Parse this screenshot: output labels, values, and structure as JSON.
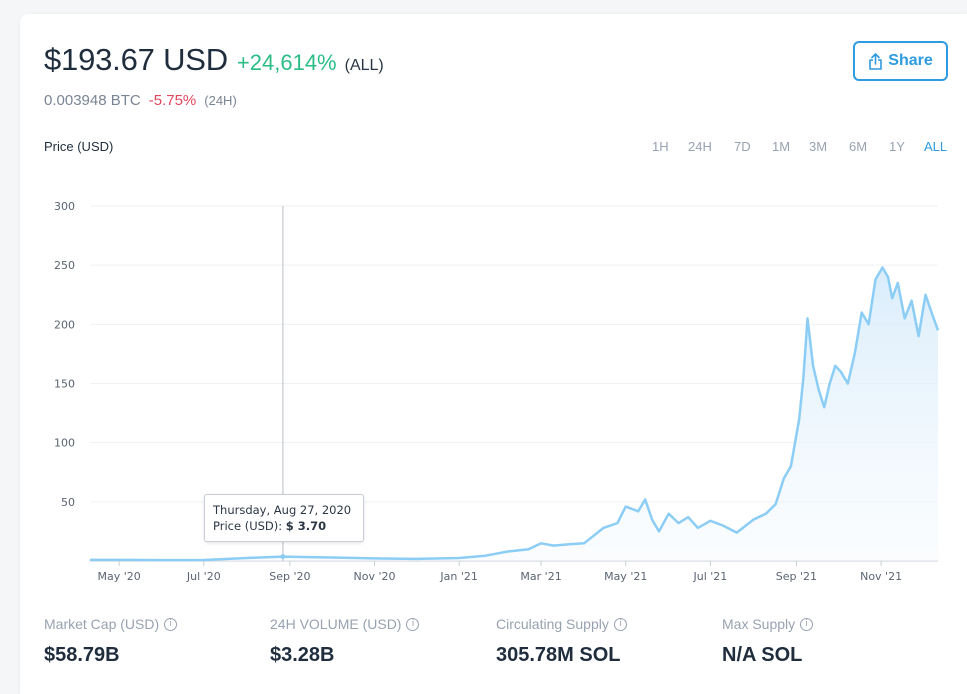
{
  "header": {
    "price": "$193.67 USD",
    "change_all": "+24,614%",
    "period_all": "(ALL)",
    "btc_price": "0.003948 BTC",
    "btc_change": "-5.75%",
    "btc_period": "(24H)"
  },
  "share_button": {
    "label": "Share",
    "icon": "share-icon"
  },
  "chart_header": {
    "label": "Price (USD)",
    "ranges": [
      "1H",
      "24H",
      "7D",
      "1M",
      "3M",
      "6M",
      "1Y",
      "ALL"
    ],
    "active_range": "ALL"
  },
  "tooltip": {
    "date": "Thursday, Aug 27, 2020",
    "price_label": "Price (USD):",
    "price_value": "$ 3.70"
  },
  "chart_data": {
    "type": "area",
    "title": "",
    "xlabel": "",
    "ylabel": "Price (USD)",
    "ylim": [
      0,
      300
    ],
    "yticks": [
      50,
      100,
      150,
      200,
      250,
      300
    ],
    "x_tick_labels": [
      "May '20",
      "Jul '20",
      "Sep '20",
      "Nov '20",
      "Jan '21",
      "Mar '21",
      "May '21",
      "Jul '21",
      "Sep '21",
      "Nov '21"
    ],
    "x_tick_dates": [
      "2020-05-01",
      "2020-07-01",
      "2020-09-01",
      "2020-11-01",
      "2021-01-01",
      "2021-03-01",
      "2021-05-01",
      "2021-07-01",
      "2021-09-01",
      "2021-11-01"
    ],
    "x_range": [
      "2020-04-10",
      "2021-12-12"
    ],
    "grid": true,
    "line_color": "#8ccdf5",
    "fill_color": "#d8ecfb",
    "hover_date": "2020-08-27",
    "series": [
      {
        "x": [
          "2020-04-10",
          "2020-05-01",
          "2020-06-01",
          "2020-07-01",
          "2020-08-01",
          "2020-08-15",
          "2020-08-27",
          "2020-09-10",
          "2020-10-01",
          "2020-11-01",
          "2020-12-01",
          "2021-01-01",
          "2021-01-20",
          "2021-02-05",
          "2021-02-20",
          "2021-03-01",
          "2021-03-10",
          "2021-03-20",
          "2021-04-01",
          "2021-04-15",
          "2021-04-25",
          "2021-05-01",
          "2021-05-10",
          "2021-05-15",
          "2021-05-20",
          "2021-05-25",
          "2021-06-01",
          "2021-06-08",
          "2021-06-15",
          "2021-06-22",
          "2021-07-01",
          "2021-07-10",
          "2021-07-20",
          "2021-08-01",
          "2021-08-10",
          "2021-08-17",
          "2021-08-23",
          "2021-08-28",
          "2021-09-03",
          "2021-09-06",
          "2021-09-09",
          "2021-09-13",
          "2021-09-17",
          "2021-09-21",
          "2021-09-25",
          "2021-09-29",
          "2021-10-03",
          "2021-10-08",
          "2021-10-13",
          "2021-10-18",
          "2021-10-23",
          "2021-10-28",
          "2021-11-02",
          "2021-11-06",
          "2021-11-09",
          "2021-11-13",
          "2021-11-18",
          "2021-11-23",
          "2021-11-28",
          "2021-12-03",
          "2021-12-08",
          "2021-12-12"
        ],
        "y": [
          0.95,
          0.9,
          0.8,
          0.85,
          2.5,
          3.2,
          3.7,
          3.4,
          3.0,
          2.2,
          1.8,
          2.5,
          4.5,
          8,
          10,
          15,
          13,
          14,
          15,
          28,
          32,
          46,
          42,
          52,
          35,
          25,
          40,
          32,
          37,
          28,
          34,
          30,
          24,
          35,
          40,
          48,
          70,
          80,
          120,
          155,
          205,
          165,
          145,
          130,
          150,
          165,
          160,
          150,
          175,
          210,
          200,
          238,
          248,
          240,
          222,
          235,
          205,
          220,
          190,
          225,
          208,
          195
        ]
      }
    ]
  },
  "stats": [
    {
      "label": "Market Cap (USD)",
      "value": "$58.79B"
    },
    {
      "label": "24H VOLUME (USD)",
      "value": "$3.28B"
    },
    {
      "label": "Circulating Supply",
      "value": "305.78M SOL"
    },
    {
      "label": "Max Supply",
      "value": "N/A SOL"
    }
  ]
}
